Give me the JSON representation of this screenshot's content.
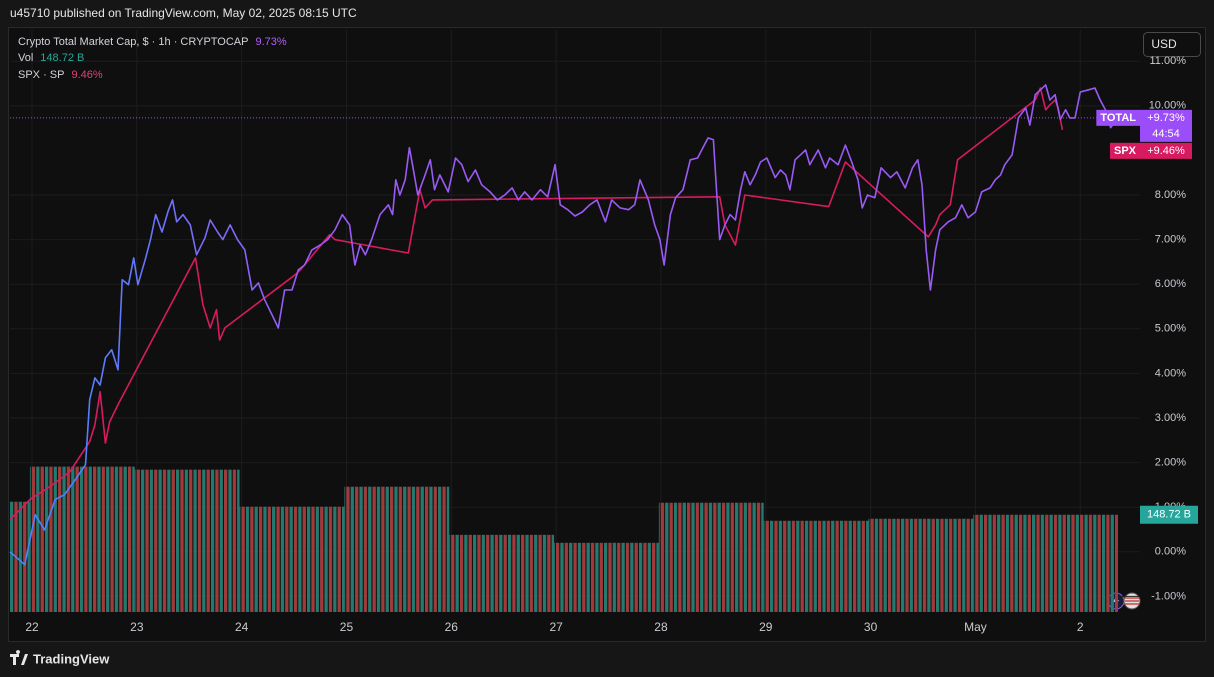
{
  "header": "u45710 published on TradingView.com, May 02, 2025 08:15 UTC",
  "footer": "TradingView",
  "currency": "USD",
  "chart_data": {
    "type": "line",
    "xlim": [
      -0.21,
      10.57
    ],
    "xticks": [
      {
        "value": 0,
        "label": "22"
      },
      {
        "value": 1,
        "label": "23"
      },
      {
        "value": 2,
        "label": "24"
      },
      {
        "value": 3,
        "label": "25"
      },
      {
        "value": 4,
        "label": "26"
      },
      {
        "value": 5,
        "label": "27"
      },
      {
        "value": 6,
        "label": "28"
      },
      {
        "value": 7,
        "label": "29"
      },
      {
        "value": 8,
        "label": "30"
      },
      {
        "value": 9,
        "label": "May"
      },
      {
        "value": 10,
        "label": "2"
      }
    ],
    "ylim": [
      -1.35,
      11.7
    ],
    "yticks": [
      {
        "value": -1,
        "label": "-1.00%"
      },
      {
        "value": 0,
        "label": "0.00%"
      },
      {
        "value": 1,
        "label": "1.00%"
      },
      {
        "value": 2,
        "label": "2.00%"
      },
      {
        "value": 3,
        "label": "3.00%"
      },
      {
        "value": 4,
        "label": "4.00%"
      },
      {
        "value": 5,
        "label": "5.00%"
      },
      {
        "value": 6,
        "label": "6.00%"
      },
      {
        "value": 7,
        "label": "7.00%"
      },
      {
        "value": 8,
        "label": "8.00%"
      },
      {
        "value": 10,
        "label": "10.00%"
      },
      {
        "value": 11,
        "label": "11.00%"
      }
    ],
    "grid": true,
    "series": [
      {
        "name": "Crypto Total Market Cap, $ · 1h · CRYPTOCAP",
        "short_name": "TOTAL",
        "legend_value": "9.73%",
        "last": {
          "value": 9.73,
          "label": "+9.73%"
        },
        "countdown": "44:54",
        "color": "#9c4dfa",
        "gradient": [
          "#3d8bff",
          "#9a5af5"
        ],
        "x": [
          -0.21,
          -0.07,
          0.03,
          0.12,
          0.22,
          0.31,
          0.41,
          0.51,
          0.55,
          0.6,
          0.65,
          0.7,
          0.76,
          0.82,
          0.86,
          0.92,
          0.97,
          1.01,
          1.08,
          1.13,
          1.18,
          1.24,
          1.3,
          1.34,
          1.38,
          1.44,
          1.51,
          1.57,
          1.65,
          1.7,
          1.77,
          1.82,
          1.89,
          1.96,
          2.03,
          2.1,
          2.16,
          2.22,
          2.29,
          2.35,
          2.41,
          2.48,
          2.54,
          2.6,
          2.67,
          2.75,
          2.82,
          2.89,
          2.96,
          3.03,
          3.08,
          3.13,
          3.18,
          3.24,
          3.32,
          3.4,
          3.44,
          3.47,
          3.51,
          3.56,
          3.6,
          3.63,
          3.68,
          3.75,
          3.8,
          3.84,
          3.89,
          3.97,
          4.04,
          4.1,
          4.16,
          4.23,
          4.29,
          4.37,
          4.44,
          4.51,
          4.58,
          4.64,
          4.7,
          4.77,
          4.85,
          4.92,
          4.99,
          5.04,
          5.11,
          5.18,
          5.25,
          5.32,
          5.39,
          5.47,
          5.53,
          5.61,
          5.69,
          5.75,
          5.8,
          5.88,
          5.94,
          5.99,
          6.03,
          6.09,
          6.14,
          6.21,
          6.28,
          6.35,
          6.4,
          6.45,
          6.5,
          6.53,
          6.56,
          6.61,
          6.66,
          6.71,
          6.76,
          6.8,
          6.85,
          6.9,
          6.95,
          7.01,
          7.09,
          7.14,
          7.19,
          7.23,
          7.28,
          7.33,
          7.38,
          7.42,
          7.5,
          7.57,
          7.61,
          7.69,
          7.76,
          7.82,
          7.88,
          7.92,
          7.97,
          8.04,
          8.1,
          8.19,
          8.25,
          8.33,
          8.4,
          8.45,
          8.49,
          8.53,
          8.57,
          8.62,
          8.66,
          8.74,
          8.81,
          8.87,
          8.93,
          9.0,
          9.06,
          9.14,
          9.19,
          9.24,
          9.28,
          9.35,
          9.41,
          9.48,
          9.52,
          9.57,
          9.62,
          9.67,
          9.71,
          9.76,
          9.81,
          9.86,
          9.9,
          9.95,
          10.0,
          10.08,
          10.14,
          10.19,
          10.24,
          10.29,
          10.33
        ],
        "values": [
          0.0,
          -0.29,
          0.83,
          0.49,
          1.17,
          1.28,
          1.61,
          1.95,
          3.41,
          3.9,
          3.74,
          4.35,
          4.53,
          4.08,
          6.1,
          5.99,
          6.59,
          5.99,
          6.55,
          7.0,
          7.56,
          7.17,
          7.65,
          7.89,
          7.4,
          7.56,
          7.33,
          6.66,
          7.04,
          7.44,
          7.17,
          7.0,
          7.33,
          7.0,
          6.77,
          5.87,
          6.03,
          5.65,
          5.31,
          5.02,
          5.87,
          5.87,
          6.32,
          6.43,
          6.77,
          6.88,
          7.0,
          7.22,
          7.56,
          7.33,
          6.43,
          6.88,
          6.66,
          7.0,
          7.56,
          7.78,
          7.56,
          8.34,
          8.0,
          8.34,
          9.06,
          8.68,
          8.0,
          8.45,
          8.79,
          8.12,
          8.45,
          8.07,
          8.83,
          8.68,
          8.3,
          8.56,
          8.23,
          8.07,
          7.89,
          8.0,
          8.16,
          7.89,
          8.07,
          7.89,
          8.12,
          7.96,
          8.68,
          7.78,
          7.67,
          7.53,
          7.62,
          7.78,
          7.89,
          7.4,
          7.89,
          7.71,
          7.67,
          7.78,
          8.34,
          7.89,
          7.33,
          7.0,
          6.43,
          7.56,
          7.94,
          8.12,
          8.79,
          8.83,
          9.06,
          9.28,
          9.24,
          8.12,
          7.0,
          7.33,
          7.56,
          7.44,
          8.12,
          8.52,
          8.23,
          8.45,
          8.74,
          8.83,
          8.39,
          8.56,
          8.45,
          8.12,
          8.79,
          8.9,
          9.01,
          8.68,
          9.01,
          8.61,
          8.83,
          8.68,
          9.12,
          8.74,
          8.34,
          7.71,
          8.0,
          7.94,
          8.61,
          8.39,
          8.52,
          8.16,
          8.61,
          8.79,
          8.23,
          6.77,
          5.87,
          6.77,
          7.22,
          7.4,
          7.49,
          7.78,
          7.49,
          7.62,
          8.07,
          8.16,
          8.34,
          8.45,
          8.68,
          8.9,
          9.73,
          9.95,
          9.57,
          10.25,
          10.36,
          10.47,
          10.13,
          10.25,
          9.69,
          9.91,
          9.73,
          9.73,
          10.31,
          10.36,
          10.4,
          10.13,
          9.91,
          9.51,
          9.64
        ]
      },
      {
        "name": "SPX · SP",
        "short_name": "SPX",
        "legend_value": "9.46%",
        "last": {
          "value": 9.46,
          "label": "+9.46%"
        },
        "color": "#d81b60",
        "x": [
          -0.21,
          -0.02,
          0.17,
          0.36,
          0.55,
          0.6,
          0.65,
          0.7,
          0.74,
          0.82,
          1.56,
          1.63,
          1.7,
          1.76,
          1.79,
          1.84,
          2.51,
          2.56,
          2.8,
          2.84,
          2.89,
          3.59,
          3.7,
          3.75,
          3.82,
          6.56,
          6.61,
          6.66,
          6.71,
          6.8,
          7.6,
          7.76,
          8.55,
          8.62,
          8.66,
          8.76,
          8.83,
          9.57,
          9.62,
          9.67,
          9.71,
          9.76,
          9.79,
          9.83
        ],
        "values": [
          0.72,
          1.17,
          1.46,
          1.79,
          2.47,
          2.85,
          3.59,
          2.44,
          2.91,
          3.3,
          6.59,
          5.54,
          5.02,
          5.43,
          4.75,
          5.02,
          6.21,
          6.32,
          7.0,
          7.11,
          7.0,
          6.7,
          8.12,
          7.71,
          7.89,
          7.96,
          7.33,
          7.11,
          6.88,
          8.0,
          7.74,
          8.74,
          7.06,
          7.33,
          7.56,
          7.78,
          8.79,
          10.13,
          10.4,
          9.91,
          10.02,
          10.13,
          9.95,
          9.46
        ]
      }
    ],
    "volume": {
      "name": "Vol",
      "legend_value": "148.72 B",
      "last": {
        "value": 148.72,
        "label": "148.72 B"
      },
      "color": "#26a69a",
      "up_color": "#237a70",
      "down_color": "#a23a3c",
      "lim": [
        0,
        890
      ],
      "bins": [
        -0.21,
        -0.02,
        0.98,
        1.98,
        2.98,
        3.98,
        4.98,
        5.98,
        6.98,
        7.98,
        8.98,
        10.36
      ],
      "values": [
        168.6,
        222.3,
        217.7,
        161,
        191.6,
        118,
        105.8,
        167.1,
        139.5,
        142.6,
        148.72
      ]
    }
  }
}
